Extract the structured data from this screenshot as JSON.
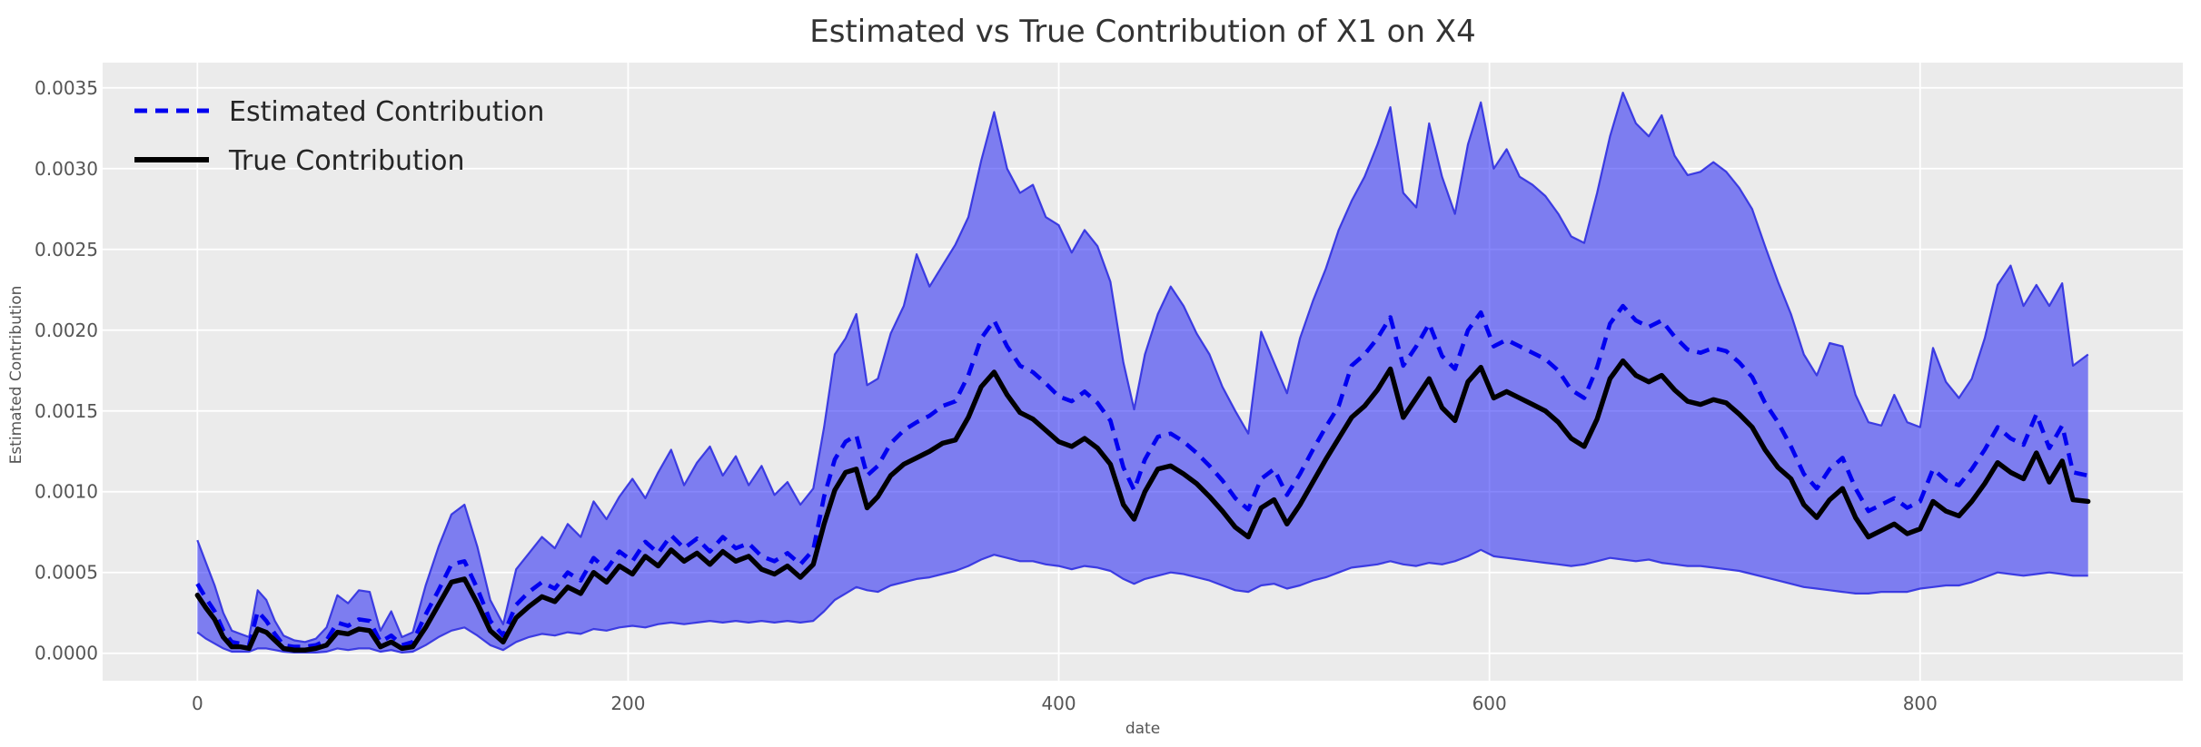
{
  "figure": {
    "title": "Estimated vs True Contribution of X1 on X4"
  },
  "axes": {
    "xlabel": "date",
    "ylabel": "Estimated Contribution",
    "x_ticks": [
      {
        "value": 0,
        "label": "0"
      },
      {
        "value": 200,
        "label": "200"
      },
      {
        "value": 400,
        "label": "400"
      },
      {
        "value": 600,
        "label": "600"
      },
      {
        "value": 800,
        "label": "800"
      }
    ],
    "y_ticks": [
      {
        "value": 0.0,
        "label": "0.0000"
      },
      {
        "value": 0.0005,
        "label": "0.0005"
      },
      {
        "value": 0.001,
        "label": "0.0010"
      },
      {
        "value": 0.0015,
        "label": "0.0015"
      },
      {
        "value": 0.002,
        "label": "0.0020"
      },
      {
        "value": 0.0025,
        "label": "0.0025"
      },
      {
        "value": 0.003,
        "label": "0.0030"
      },
      {
        "value": 0.0035,
        "label": "0.0035"
      }
    ]
  },
  "legend": {
    "position": "upper left",
    "items": [
      {
        "label": "Estimated Contribution",
        "style": "dashed",
        "color": "#0000f0"
      },
      {
        "label": "True Contribution",
        "style": "solid",
        "color": "#000000"
      }
    ]
  },
  "colors": {
    "plot_background": "#ebebeb",
    "grid": "#ffffff",
    "band_fill": "rgba(10,10,245,0.49)",
    "band_edge": "#2f2fe0",
    "estimated_line": "#0000f0",
    "true_line": "#000000"
  },
  "chart_data": {
    "type": "line",
    "title": "Estimated vs True Contribution of X1 on X4",
    "xlabel": "date",
    "ylabel": "Estimated Contribution",
    "grid": true,
    "legend_position": "upper left",
    "xlim": [
      -44,
      922
    ],
    "ylim": [
      -0.00017,
      0.003656
    ],
    "value_scale": 1e-05,
    "x": [
      0,
      4,
      8,
      12,
      16,
      20,
      24,
      28,
      32,
      36,
      40,
      45,
      50,
      55,
      60,
      65,
      70,
      75,
      80,
      85,
      90,
      95,
      100,
      106,
      112,
      118,
      124,
      130,
      136,
      142,
      148,
      154,
      160,
      166,
      172,
      178,
      184,
      190,
      196,
      202,
      208,
      214,
      220,
      226,
      232,
      238,
      244,
      250,
      256,
      262,
      268,
      274,
      280,
      286,
      291,
      296,
      301,
      306,
      311,
      316,
      322,
      328,
      334,
      340,
      346,
      352,
      358,
      364,
      370,
      376,
      382,
      388,
      394,
      400,
      406,
      412,
      418,
      424,
      430,
      435,
      440,
      446,
      452,
      458,
      464,
      470,
      476,
      482,
      488,
      494,
      500,
      506,
      512,
      518,
      524,
      530,
      536,
      542,
      548,
      554,
      560,
      566,
      572,
      578,
      584,
      590,
      596,
      602,
      608,
      614,
      620,
      626,
      632,
      638,
      644,
      650,
      656,
      662,
      668,
      674,
      680,
      686,
      692,
      698,
      704,
      710,
      716,
      722,
      728,
      734,
      740,
      746,
      752,
      758,
      764,
      770,
      776,
      782,
      788,
      794,
      800,
      806,
      812,
      818,
      824,
      830,
      836,
      842,
      848,
      854,
      860,
      866,
      871,
      878
    ],
    "series": [
      {
        "name": "Estimated Contribution",
        "style": "dashed",
        "color": "#0000f0",
        "values": [
          43,
          34,
          26,
          14,
          7,
          6,
          5,
          26,
          20,
          12,
          5,
          4,
          4,
          5,
          8,
          19,
          17,
          21,
          20,
          7,
          11,
          5,
          7,
          24,
          39,
          55,
          57,
          40,
          20,
          11,
          30,
          38,
          44,
          40,
          50,
          45,
          59,
          52,
          63,
          57,
          69,
          62,
          73,
          65,
          71,
          63,
          72,
          65,
          68,
          60,
          57,
          62,
          55,
          64,
          97,
          120,
          131,
          135,
          110,
          116,
          130,
          138,
          143,
          147,
          153,
          156,
          172,
          195,
          206,
          190,
          178,
          174,
          167,
          159,
          156,
          162,
          155,
          144,
          115,
          101,
          120,
          134,
          136,
          131,
          124,
          116,
          107,
          96,
          89,
          108,
          114,
          98,
          111,
          126,
          140,
          153,
          178,
          185,
          195,
          208,
          178,
          190,
          204,
          184,
          176,
          200,
          211,
          190,
          194,
          190,
          186,
          182,
          175,
          163,
          158,
          177,
          204,
          215,
          206,
          202,
          206,
          196,
          188,
          186,
          189,
          187,
          180,
          171,
          155,
          143,
          128,
          111,
          102,
          114,
          121,
          102,
          88,
          92,
          96,
          90,
          94,
          114,
          107,
          104,
          114,
          126,
          140,
          133,
          129,
          148,
          127,
          141,
          112,
          110
        ]
      },
      {
        "name": "True Contribution",
        "style": "solid",
        "color": "#000000",
        "values": [
          36,
          28,
          21,
          10,
          4,
          4,
          3,
          15,
          13,
          8,
          3,
          2,
          2,
          3,
          5,
          13,
          12,
          15,
          14,
          4,
          7,
          3,
          4,
          16,
          30,
          44,
          46,
          31,
          14,
          7,
          22,
          29,
          35,
          32,
          41,
          37,
          50,
          44,
          54,
          49,
          60,
          54,
          64,
          57,
          62,
          55,
          63,
          57,
          60,
          52,
          49,
          54,
          47,
          55,
          80,
          101,
          112,
          114,
          90,
          97,
          110,
          117,
          121,
          125,
          130,
          132,
          146,
          165,
          174,
          160,
          149,
          145,
          138,
          131,
          128,
          133,
          127,
          117,
          92,
          83,
          100,
          114,
          116,
          111,
          105,
          97,
          88,
          78,
          72,
          90,
          95,
          80,
          92,
          106,
          120,
          133,
          146,
          153,
          163,
          176,
          146,
          158,
          170,
          152,
          144,
          168,
          177,
          158,
          162,
          158,
          154,
          150,
          143,
          133,
          128,
          145,
          170,
          181,
          172,
          168,
          172,
          163,
          156,
          154,
          157,
          155,
          148,
          140,
          126,
          115,
          108,
          92,
          84,
          95,
          102,
          84,
          72,
          76,
          80,
          74,
          77,
          94,
          88,
          85,
          94,
          105,
          118,
          112,
          108,
          124,
          106,
          119,
          95,
          94
        ]
      }
    ],
    "band": {
      "name": "uncertainty band around estimated contribution",
      "upper": [
        70,
        56,
        42,
        25,
        14,
        12,
        10,
        39,
        33,
        20,
        11,
        8,
        7,
        9,
        16,
        36,
        31,
        39,
        38,
        14,
        26,
        10,
        13,
        42,
        66,
        86,
        92,
        66,
        33,
        18,
        52,
        62,
        72,
        65,
        80,
        72,
        94,
        83,
        97,
        108,
        96,
        112,
        126,
        104,
        118,
        128,
        110,
        122,
        104,
        116,
        98,
        106,
        92,
        102,
        140,
        185,
        195,
        210,
        166,
        170,
        198,
        215,
        247,
        227,
        240,
        253,
        270,
        305,
        335,
        300,
        285,
        290,
        270,
        265,
        248,
        262,
        252,
        230,
        180,
        151,
        185,
        210,
        227,
        215,
        198,
        185,
        165,
        150,
        136,
        199,
        180,
        161,
        195,
        218,
        238,
        262,
        280,
        295,
        315,
        338,
        285,
        276,
        328,
        295,
        272,
        315,
        341,
        300,
        312,
        295,
        290,
        283,
        272,
        258,
        254,
        285,
        320,
        347,
        328,
        320,
        333,
        308,
        296,
        298,
        304,
        298,
        288,
        275,
        252,
        230,
        210,
        185,
        172,
        192,
        190,
        160,
        143,
        141,
        160,
        143,
        140,
        189,
        168,
        158,
        170,
        195,
        228,
        240,
        215,
        228,
        215,
        229,
        178,
        185
      ],
      "lower": [
        13,
        9,
        6,
        3,
        1,
        1,
        1,
        3,
        3,
        2,
        1,
        0.5,
        0.5,
        0.5,
        1,
        3,
        2,
        3,
        3,
        1,
        2,
        0.5,
        1,
        5,
        10,
        14,
        16,
        11,
        5,
        2,
        7,
        10,
        12,
        11,
        13,
        12,
        15,
        14,
        16,
        17,
        16,
        18,
        19,
        18,
        19,
        20,
        19,
        20,
        19,
        20,
        19,
        20,
        19,
        20,
        26,
        33,
        37,
        41,
        39,
        38,
        42,
        44,
        46,
        47,
        49,
        51,
        54,
        58,
        61,
        59,
        57,
        57,
        55,
        54,
        52,
        54,
        53,
        51,
        46,
        43,
        46,
        48,
        50,
        49,
        47,
        45,
        42,
        39,
        38,
        42,
        43,
        40,
        42,
        45,
        47,
        50,
        53,
        54,
        55,
        57,
        55,
        54,
        56,
        55,
        57,
        60,
        64,
        60,
        59,
        58,
        57,
        56,
        55,
        54,
        55,
        57,
        59,
        58,
        57,
        58,
        56,
        55,
        54,
        54,
        53,
        52,
        51,
        49,
        47,
        45,
        43,
        41,
        40,
        39,
        38,
        37,
        37,
        38,
        38,
        38,
        40,
        41,
        42,
        42,
        44,
        47,
        50,
        49,
        48,
        49,
        50,
        49,
        48,
        48
      ]
    }
  }
}
